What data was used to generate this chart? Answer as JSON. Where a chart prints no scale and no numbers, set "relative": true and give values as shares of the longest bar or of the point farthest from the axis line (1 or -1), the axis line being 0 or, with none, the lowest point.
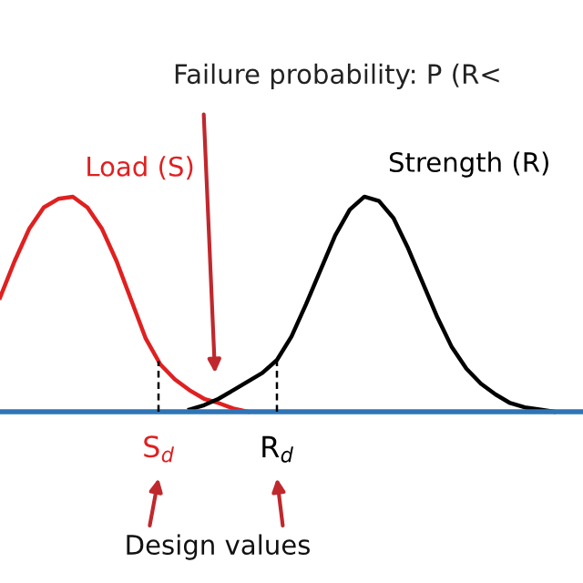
{
  "chart_data": {
    "type": "line",
    "relative": true,
    "grid": false,
    "marker": "none",
    "categories": [
      null,
      null,
      null,
      null,
      null,
      null,
      null,
      null,
      null,
      null,
      null,
      null,
      null,
      null,
      null,
      null,
      null,
      null,
      null,
      null,
      null,
      null,
      null,
      null,
      null,
      null,
      null,
      null,
      null,
      null,
      null,
      null,
      null,
      null,
      null,
      null,
      null,
      null,
      null,
      null,
      null
    ],
    "series": [
      {
        "name": "Load (S)",
        "color": "#e02020",
        "values": [
          0.53,
          0.7,
          0.85,
          0.95,
          0.99,
          1.0,
          0.95,
          0.85,
          0.7,
          0.52,
          0.34,
          0.22,
          0.15,
          0.1,
          0.06,
          0.04,
          0.015,
          0,
          null,
          null,
          null,
          null,
          null,
          null,
          null,
          null,
          null,
          null,
          null,
          null,
          null,
          null,
          null,
          null,
          null,
          null,
          null,
          null,
          null,
          null,
          null
        ]
      },
      {
        "name": "Strength (R)",
        "color": "#000000",
        "values": [
          null,
          null,
          null,
          null,
          null,
          null,
          null,
          null,
          null,
          null,
          null,
          null,
          null,
          0.01,
          0.03,
          0.06,
          0.1,
          0.14,
          0.18,
          0.24,
          0.35,
          0.5,
          0.66,
          0.82,
          0.94,
          1.0,
          0.98,
          0.9,
          0.76,
          0.6,
          0.44,
          0.3,
          0.2,
          0.13,
          0.08,
          0.04,
          0.02,
          0.01,
          0,
          null,
          null
        ]
      }
    ],
    "ref_lines": [
      {
        "axis": "y",
        "value": 0,
        "color": "#2e75b6"
      }
    ],
    "annotations": [
      "Failure probability: P (R<",
      "S$_{d}$",
      "R$_{d}$",
      "Design values"
    ]
  }
}
